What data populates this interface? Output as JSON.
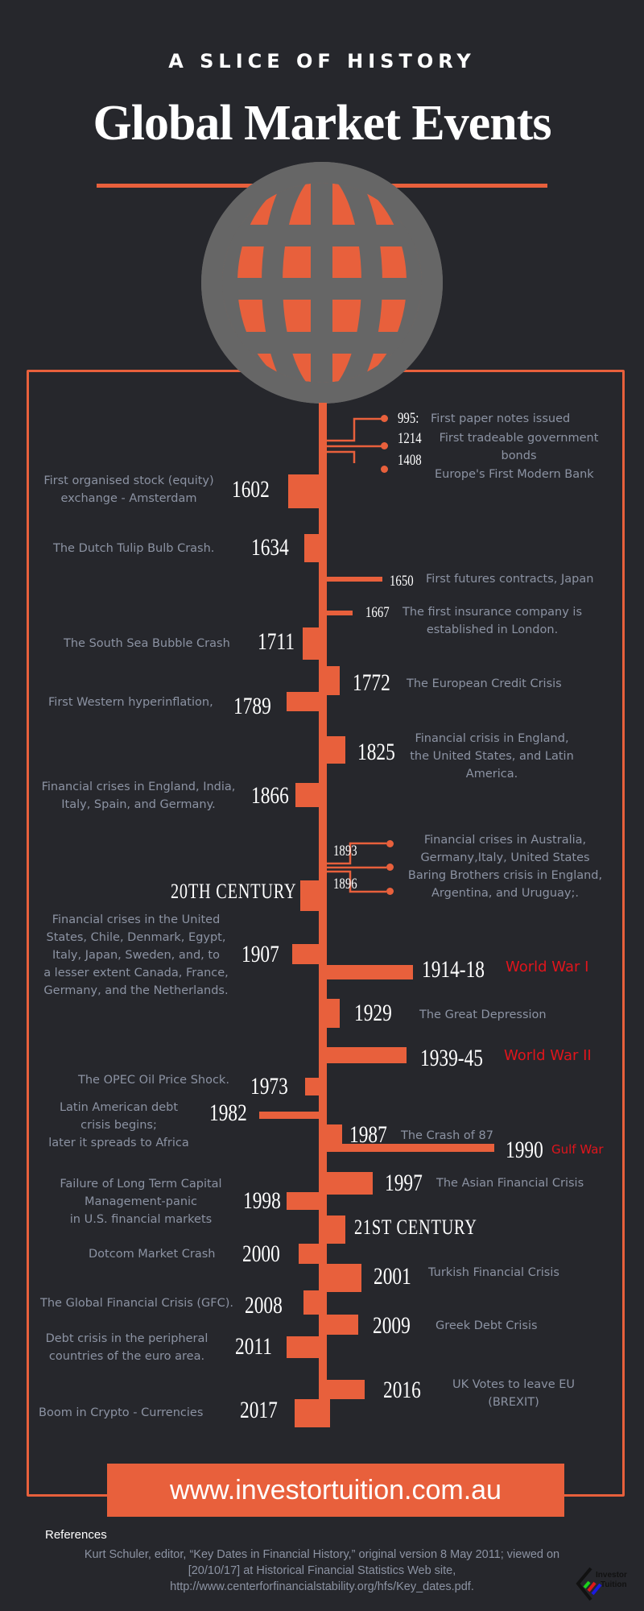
{
  "header": {
    "kicker": "A SLICE OF HISTORY",
    "title": "Global Market Events"
  },
  "colors": {
    "background": "#26272c",
    "accent": "#e8603c",
    "globe": "#666666",
    "text": "#8c93a3",
    "highlight": "#e0151c"
  },
  "early": [
    {
      "year": "995:",
      "text": "First paper notes issued"
    },
    {
      "year": "1214",
      "text": "First tradeable government bonds",
      "line1": "First tradeable government",
      "line2": "bonds"
    },
    {
      "year": "1408",
      "text": "Europe's First Modern Bank"
    }
  ],
  "events": {
    "e1602": {
      "year": "1602",
      "l1": "First organised stock (equity)",
      "l2": "exchange - Amsterdam"
    },
    "e1634": {
      "year": "1634",
      "l1": "The Dutch Tulip Bulb Crash."
    },
    "e1650": {
      "year": "1650",
      "l1": "First futures contracts, Japan"
    },
    "e1667": {
      "year": "1667",
      "l1": "The first insurance company is",
      "l2": "established in London."
    },
    "e1711": {
      "year": "1711",
      "l1": "The South Sea Bubble Crash"
    },
    "e1772": {
      "year": "1772",
      "l1": "The European Credit Crisis"
    },
    "e1789": {
      "year": "1789",
      "l1": "First Western hyperinflation,"
    },
    "e1825": {
      "year": "1825",
      "l1": "Financial crisis in England,",
      "l2": "the United States, and Latin",
      "l3": "America."
    },
    "e1866": {
      "year": "1866",
      "l1": "Financial crises in England, India,",
      "l2": "Italy, Spain, and Germany."
    },
    "e1893": {
      "year": "1893",
      "l1": "Financial crises in Australia,",
      "l2": "Germany,Italy, United States"
    },
    "e1896": {
      "year": "1896",
      "l1": "Baring Brothers crisis in England,",
      "l2": "Argentina, and Uruguay;."
    },
    "c20": {
      "label": "20TH CENTURY"
    },
    "e1907": {
      "year": "1907",
      "l1": "Financial crises in the United",
      "l2": "States, Chile, Denmark, Egypt,",
      "l3": "Italy, Japan, Sweden, and, to",
      "l4": "a lesser extent Canada, France,",
      "l5": "Germany, and the Netherlands."
    },
    "e1914": {
      "year": "1914-18",
      "l1": "World War I"
    },
    "e1929": {
      "year": "1929",
      "l1": "The Great Depression"
    },
    "e1939": {
      "year": "1939-45",
      "l1": "World War II"
    },
    "e1973": {
      "year": "1973",
      "l1": "The OPEC Oil Price Shock."
    },
    "e1982": {
      "year": "1982",
      "l1": "Latin American debt",
      "l2": "crisis  begins;",
      "l3": "later it spreads to Africa"
    },
    "e1987": {
      "year": "1987",
      "l1": "The Crash of 87"
    },
    "e1990": {
      "year": "1990",
      "l1": "Gulf War"
    },
    "e1997": {
      "year": "1997",
      "l1": "The Asian Financial Crisis"
    },
    "e1998": {
      "year": "1998",
      "l1": "Failure of Long Term Capital",
      "l2": "Management-panic",
      "l3": "in U.S. financial markets"
    },
    "c21": {
      "label": "21ST CENTURY"
    },
    "e2000": {
      "year": "2000",
      "l1": "Dotcom Market Crash"
    },
    "e2001": {
      "year": "2001",
      "l1": "Turkish Financial Crisis"
    },
    "e2008": {
      "year": "2008",
      "l1": "The Global Financial Crisis (GFC)."
    },
    "e2009": {
      "year": "2009",
      "l1": "Greek Debt Crisis"
    },
    "e2011": {
      "year": "2011",
      "l1": "Debt crisis in the peripheral",
      "l2": "countries of the euro area."
    },
    "e2016": {
      "year": "2016",
      "l1": "UK Votes to leave EU",
      "l2": "(BREXIT)"
    },
    "e2017": {
      "year": "2017",
      "l1": "Boom in Crypto - Currencies"
    }
  },
  "footer": {
    "website": "www.investortuition.com.au",
    "references_heading": "References",
    "reference_l1": "Kurt Schuler, editor, “Key Dates in Financial History,” original version 8 May 2011; viewed on",
    "reference_l2": "[20/10/17] at Historical Financial Statistics Web site,",
    "reference_l3": "http://www.centerforfinancialstability.org/hfs/Key_dates.pdf.",
    "logo_line1": "Investor",
    "logo_line2": "Tuition"
  }
}
